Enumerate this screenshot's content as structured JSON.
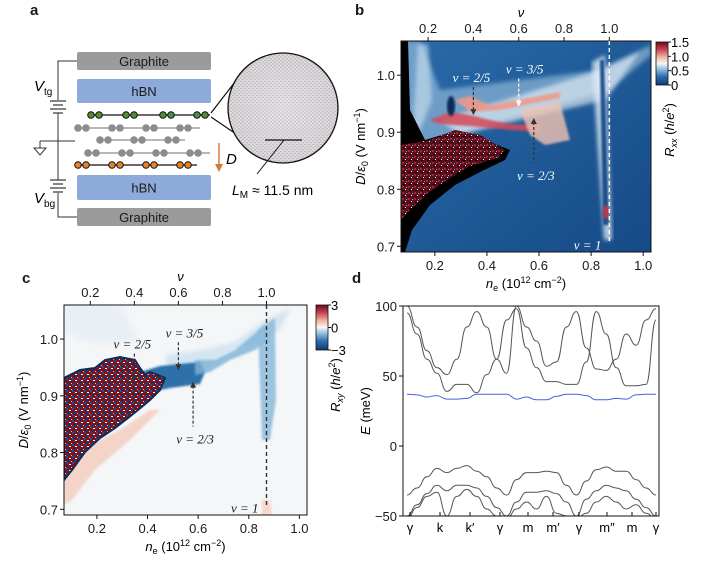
{
  "panel_labels": {
    "a": "a",
    "b": "b",
    "c": "c",
    "d": "d"
  },
  "panel_a": {
    "layers": [
      {
        "name": "graphite-top",
        "label": "Graphite",
        "color": "#9b9b9b"
      },
      {
        "name": "hbn-top",
        "label": "hBN",
        "color": "#8eaadb"
      },
      {
        "name": "hbn-bottom",
        "label": "hBN",
        "color": "#8eaadb"
      },
      {
        "name": "graphite-bottom",
        "label": "Graphite",
        "color": "#9b9b9b"
      }
    ],
    "graphene_layers": [
      {
        "color": "#4f8f3a",
        "line": "#111111"
      },
      {
        "color": "#8c8c8c",
        "line": "#8c8c8c"
      },
      {
        "color": "#8c8c8c",
        "line": "#8c8c8c"
      },
      {
        "color": "#8c8c8c",
        "line": "#8c8c8c"
      },
      {
        "color": "#e8822a",
        "line": "#111111"
      }
    ],
    "vtg_label": "V",
    "vtg_sub": "tg",
    "vbg_label": "V",
    "vbg_sub": "bg",
    "d_label": "D",
    "d_arrow_color": "#d9782d",
    "moire_label": "L",
    "moire_sub": "M",
    "moire_value": " ≈ 11.5 nm"
  },
  "chart_data": [
    {
      "panel": "b",
      "type": "heatmap",
      "title": "",
      "xlabel": "n_e (10^12 cm^-2)",
      "ylabel": "D/ε0 (V nm^-1)",
      "top_xlabel": "ν",
      "xlim": [
        0.07,
        1.03
      ],
      "ylim": [
        0.69,
        1.06
      ],
      "x_ticks": [
        0.2,
        0.4,
        0.6,
        0.8,
        1.0
      ],
      "y_ticks": [
        0.7,
        0.8,
        0.9,
        1.0
      ],
      "top_ticks": [
        {
          "label": "0.2",
          "n": 0.174
        },
        {
          "label": "0.4",
          "n": 0.348
        },
        {
          "label": "0.6",
          "n": 0.522
        },
        {
          "label": "0.8",
          "n": 0.696
        },
        {
          "label": "1.0",
          "n": 0.87
        }
      ],
      "colorbar": {
        "label": "R_xx (h/e^2)",
        "ticks": [
          "1.5",
          "1.0",
          "0.5",
          "0"
        ],
        "range": [
          0,
          1.5
        ],
        "colormap": "RdBu_r"
      },
      "annotations": [
        {
          "text": "ν = 2/5",
          "n": 0.348,
          "D": 0.93,
          "dir": "down"
        },
        {
          "text": "ν = 3/5",
          "n": 0.522,
          "D": 0.945,
          "dir": "down"
        },
        {
          "text": "ν = 2/3",
          "n": 0.58,
          "D": 0.925,
          "dir": "up"
        },
        {
          "text": "ν = 1",
          "n": 0.87,
          "D": 0.7,
          "dir": "line"
        }
      ],
      "x_tick_labels": [
        "0.2",
        "0.4",
        "0.6",
        "0.8",
        "1.0"
      ],
      "y_tick_labels": [
        "0.7",
        "0.8",
        "0.9",
        "1.0"
      ]
    },
    {
      "panel": "c",
      "type": "heatmap",
      "title": "",
      "xlabel": "n_e (10^12 cm^-2)",
      "ylabel": "D/ε0 (V nm^-1)",
      "top_xlabel": "ν",
      "xlim": [
        0.07,
        1.03
      ],
      "ylim": [
        0.69,
        1.06
      ],
      "x_ticks": [
        0.2,
        0.4,
        0.6,
        0.8,
        1.0
      ],
      "y_ticks": [
        0.7,
        0.8,
        0.9,
        1.0
      ],
      "colorbar": {
        "label": "R_xy (h/e^2)",
        "ticks": [
          "3",
          "0",
          "−3"
        ],
        "range": [
          -3,
          3
        ],
        "colormap": "RdBu_r"
      },
      "annotations": [
        {
          "text": "ν = 2/5",
          "n": 0.348,
          "D": 0.925,
          "dir": "down"
        },
        {
          "text": "ν = 3/5",
          "n": 0.522,
          "D": 0.945,
          "dir": "down"
        },
        {
          "text": "ν = 2/3",
          "n": 0.58,
          "D": 0.925,
          "dir": "up"
        },
        {
          "text": "ν = 1",
          "n": 0.87,
          "D": 0.7,
          "dir": "line"
        }
      ],
      "x_tick_labels": [
        "0.2",
        "0.4",
        "0.6",
        "0.8",
        "1.0"
      ],
      "y_tick_labels": [
        "0.7",
        "0.8",
        "0.9",
        "1.0"
      ]
    },
    {
      "panel": "d",
      "type": "line",
      "title": "",
      "xlabel": "",
      "ylabel": "E (meV)",
      "ylim": [
        -50,
        100
      ],
      "y_ticks": [
        -50,
        0,
        50,
        100
      ],
      "y_tick_labels": [
        "−50",
        "0",
        "50",
        "100"
      ],
      "k_points": [
        "γ",
        "k",
        "k′",
        "γ",
        "m",
        "m′",
        "γ",
        "m″",
        "m",
        "γ"
      ],
      "series": [
        {
          "name": "flat-band",
          "color": "#4a5fe0",
          "values": [
            37,
            36.5,
            35,
            36,
            33.5,
            33.5,
            34,
            37,
            37,
            37,
            37,
            33.5,
            35,
            33,
            33,
            35.5,
            37,
            37,
            36,
            33,
            33,
            34,
            33.5,
            36.5,
            37,
            37
          ]
        },
        {
          "name": "conduction-1",
          "color": "#555555",
          "values": [
            95,
            80,
            62,
            52,
            39,
            44,
            44,
            38,
            51,
            62,
            90,
            98,
            70,
            56,
            46,
            46,
            44,
            44,
            60,
            96,
            80,
            56,
            43,
            43,
            44,
            90
          ]
        },
        {
          "name": "conduction-2",
          "color": "#555555",
          "values": [
            100,
            85,
            68,
            56,
            51,
            62,
            85,
            96,
            85,
            62,
            52,
            100,
            85,
            75,
            57,
            60,
            85,
            96,
            70,
            55,
            54,
            62,
            80,
            72,
            90,
            98
          ]
        },
        {
          "name": "valence-1",
          "color": "#555555",
          "values": [
            -35,
            -30,
            -22,
            -16,
            -19,
            -16,
            -14,
            -18,
            -22,
            -30,
            -35,
            -24,
            -19,
            -19,
            -18,
            -19,
            -28,
            -35,
            -25,
            -17,
            -15,
            -18,
            -18,
            -24,
            -30,
            -35
          ]
        },
        {
          "name": "valence-2",
          "color": "#555555",
          "values": [
            -50,
            -42,
            -34,
            -28,
            -32,
            -28,
            -28,
            -30,
            -36,
            -44,
            -50,
            -40,
            -33,
            -33,
            -32,
            -34,
            -40,
            -50,
            -38,
            -32,
            -28,
            -30,
            -32,
            -38,
            -44,
            -50
          ]
        },
        {
          "name": "valence-3",
          "color": "#555555",
          "values": [
            -52,
            -44,
            -36,
            -33,
            -50,
            -36,
            -31,
            -36,
            -45,
            -50,
            -52,
            -45,
            -40,
            -45,
            -36,
            -48,
            -50,
            -52,
            -48,
            -40,
            -36,
            -40,
            -45,
            -42,
            -48,
            -52
          ]
        }
      ]
    }
  ]
}
